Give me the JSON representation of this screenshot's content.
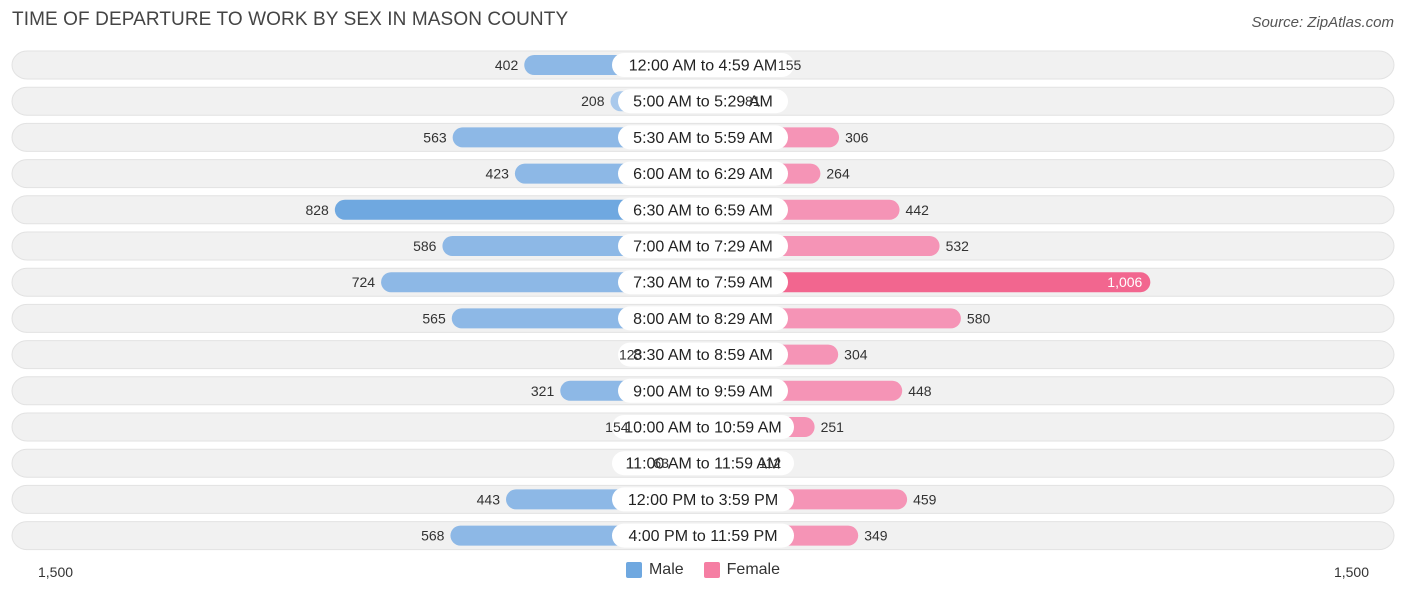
{
  "header": {
    "title": "TIME OF DEPARTURE TO WORK BY SEX IN MASON COUNTY",
    "source": "Source: ZipAtlas.com"
  },
  "colors": {
    "male": "#6fa8e0",
    "male_light": "#a9c9ec",
    "female": "#f57ea3",
    "female_light": "#f7a9c3",
    "female_strong": "#f2668f"
  },
  "legend": {
    "male_label": "Male",
    "female_label": "Female"
  },
  "chart_data": {
    "type": "bar",
    "orientation": "horizontal-diverging",
    "title": "TIME OF DEPARTURE TO WORK BY SEX IN MASON COUNTY",
    "categories": [
      "12:00 AM to 4:59 AM",
      "5:00 AM to 5:29 AM",
      "5:30 AM to 5:59 AM",
      "6:00 AM to 6:29 AM",
      "6:30 AM to 6:59 AM",
      "7:00 AM to 7:29 AM",
      "7:30 AM to 7:59 AM",
      "8:00 AM to 8:29 AM",
      "8:30 AM to 8:59 AM",
      "9:00 AM to 9:59 AM",
      "10:00 AM to 10:59 AM",
      "11:00 AM to 11:59 AM",
      "12:00 PM to 3:59 PM",
      "4:00 PM to 11:59 PM"
    ],
    "series": [
      {
        "name": "Male",
        "values": [
          402,
          208,
          563,
          423,
          828,
          586,
          724,
          565,
          123,
          321,
          154,
          63,
          443,
          568
        ]
      },
      {
        "name": "Female",
        "values": [
          155,
          81,
          306,
          264,
          442,
          532,
          1006,
          580,
          304,
          448,
          251,
          112,
          459,
          349
        ]
      }
    ],
    "xlim": [
      -1500,
      1500
    ],
    "axis_tick_labels": {
      "left": "1,500",
      "right": "1,500"
    },
    "legend_position": "bottom-center"
  }
}
